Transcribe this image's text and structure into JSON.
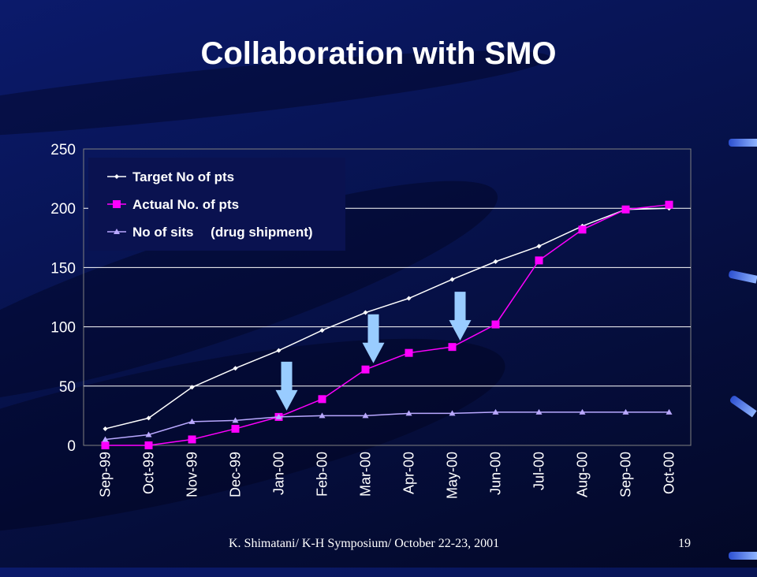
{
  "slide": {
    "title": "Collaboration with SMO",
    "footer": "K. Shimatani/ K-H Symposium/ October 22-23, 2001",
    "slide_number": "19"
  },
  "colors": {
    "target": "#ffffff",
    "actual": "#ff00ff",
    "sites": "#b9a8ff",
    "arrow": "#99ccff",
    "text": "#ffffff"
  },
  "chart_data": {
    "type": "line",
    "categories": [
      "Sep-99",
      "Oct-99",
      "Nov-99",
      "Dec-99",
      "Jan-00",
      "Feb-00",
      "Mar-00",
      "Apr-00",
      "May-00",
      "Jun-00",
      "Jul-00",
      "Aug-00",
      "Sep-00",
      "Oct-00"
    ],
    "ylim": [
      0,
      250
    ],
    "yticks": [
      "0",
      "50",
      "100",
      "150",
      "200",
      "250"
    ],
    "grid": true,
    "legend_position": "top-left",
    "series": [
      {
        "name": "Target No of pts",
        "marker": "diamond",
        "values": [
          14,
          23,
          49,
          65,
          80,
          97,
          112,
          124,
          140,
          155,
          168,
          185,
          199,
          200
        ]
      },
      {
        "name": "Actual No. of pts",
        "marker": "square",
        "values": [
          0,
          0,
          5,
          14,
          24,
          39,
          64,
          78,
          83,
          102,
          156,
          182,
          199,
          203
        ]
      },
      {
        "name": "No of sits　 (drug shipment)",
        "marker": "triangle",
        "values": [
          5,
          9,
          20,
          21,
          24,
          25,
          25,
          27,
          27,
          28,
          28,
          28,
          28,
          28
        ]
      }
    ],
    "annotations": [
      {
        "type": "down-arrow",
        "category": "Jan-00"
      },
      {
        "type": "down-arrow",
        "category": "Mar-00"
      },
      {
        "type": "down-arrow",
        "category": "May-00"
      }
    ]
  }
}
